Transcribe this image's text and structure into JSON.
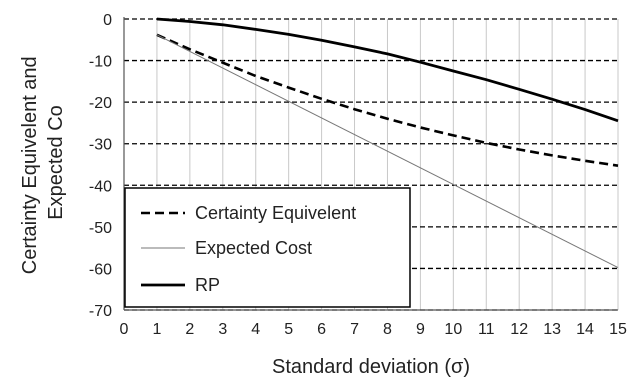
{
  "chart_data": {
    "type": "line",
    "xlabel": "Standard deviation (σ)",
    "ylabel_lines": [
      "Certainty Equivelent and",
      "Expected Co"
    ],
    "xlim": [
      0,
      15
    ],
    "ylim": [
      -70,
      0
    ],
    "x_ticks": [
      "0",
      "1",
      "2",
      "3",
      "4",
      "5",
      "6",
      "7",
      "8",
      "9",
      "10",
      "11",
      "12",
      "13",
      "14",
      "15"
    ],
    "y_ticks": [
      "0",
      "-10",
      "-20",
      "-30",
      "-40",
      "-50",
      "-60",
      "-70"
    ],
    "grid": {
      "x": "solid-light",
      "y": "dashed"
    },
    "legend": {
      "placement": "lower-left"
    },
    "series": [
      {
        "name": "Certainty Equivelent",
        "style": "dashed",
        "color": "#000000",
        "x": [
          1,
          2,
          3,
          4,
          5,
          6,
          7,
          8,
          9,
          10,
          11,
          12,
          13,
          14,
          15
        ],
        "y": [
          -3.8,
          -7.3,
          -10.5,
          -13.7,
          -16.5,
          -19.2,
          -21.7,
          -24.0,
          -26.1,
          -28.0,
          -29.8,
          -31.4,
          -32.8,
          -34.1,
          -35.3
        ]
      },
      {
        "name": "Expected Cost",
        "style": "thin",
        "color": "#777777",
        "x": [
          1,
          15
        ],
        "y": [
          -3.8,
          -59.8
        ]
      },
      {
        "name": "RP",
        "style": "solid-thick",
        "color": "#000000",
        "x": [
          1,
          2,
          3,
          4,
          5,
          6,
          7,
          8,
          9,
          10,
          11,
          12,
          13,
          14,
          15
        ],
        "y": [
          0,
          -0.6,
          -1.4,
          -2.5,
          -3.7,
          -5.1,
          -6.7,
          -8.4,
          -10.4,
          -12.5,
          -14.6,
          -16.9,
          -19.3,
          -21.8,
          -24.5
        ]
      }
    ]
  }
}
